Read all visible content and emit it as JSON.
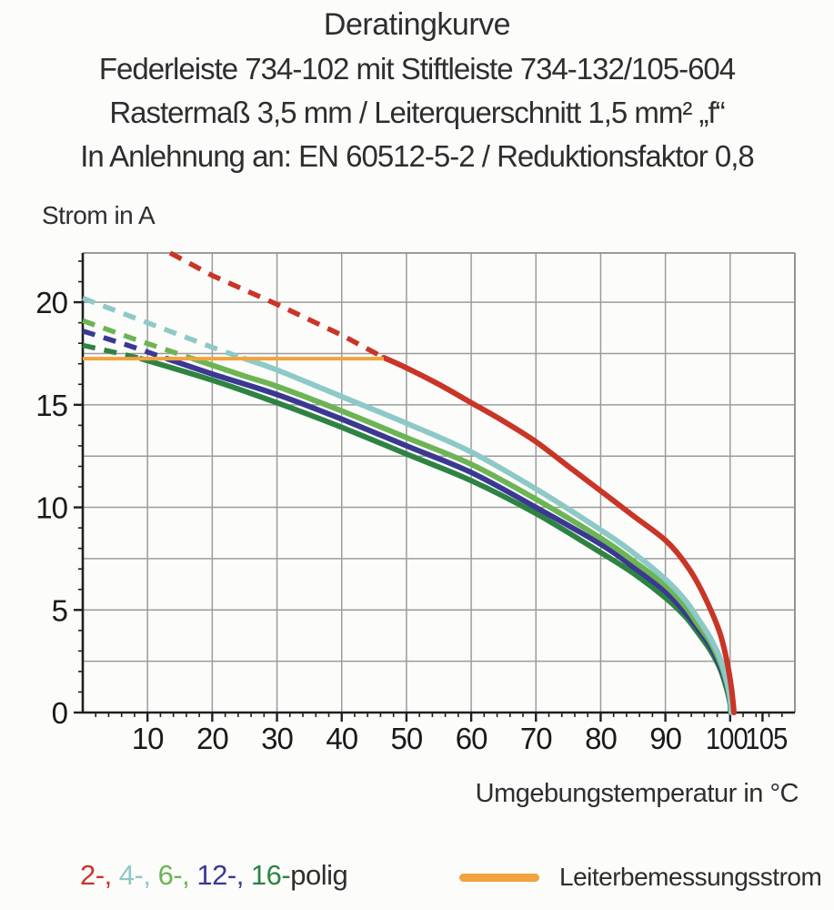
{
  "page": {
    "background": "#fcfcfb",
    "text_color": "#2e2e2e"
  },
  "header": {
    "title": "Deratingkurve",
    "subtitle1": "Federleiste 734-102 mit Stiftleiste 734-132/105-604",
    "subtitle2": "Rastermaß 3,5 mm / Leiterquerschnitt 1,5 mm² „f“",
    "subtitle3": "In Anlehnung an: EN 60512-5-2 / Reduktionsfaktor 0,8"
  },
  "chart_data": {
    "type": "line",
    "title": "Deratingkurve",
    "xlabel": "Umgebungstemperatur in °C",
    "ylabel": "Strom in A",
    "xlim": [
      0,
      110
    ],
    "ylim": [
      0,
      22.4
    ],
    "x_major_ticks": [
      10,
      20,
      30,
      40,
      50,
      60,
      70,
      80,
      90,
      100,
      105
    ],
    "x_minor_step": 2,
    "y_major_ticks": [
      0,
      5,
      10,
      15,
      20
    ],
    "y_minor_step": 1,
    "grid": {
      "x_step": 10,
      "y_step": 2.5,
      "color": "#9c9c9c",
      "frame_color": "#8e8e8e",
      "axis_color": "#1f1f1f",
      "tick_label_color": "#1a1a1a"
    },
    "series": [
      {
        "name": "2-polig",
        "color": "#c93526",
        "dashed": [
          [
            13.5,
            22.4
          ],
          [
            20,
            21.3
          ],
          [
            30,
            19.9
          ],
          [
            40,
            18.4
          ],
          [
            46.5,
            17.3
          ]
        ],
        "solid": [
          [
            46.5,
            17.3
          ],
          [
            50,
            16.8
          ],
          [
            55,
            16.0
          ],
          [
            60,
            15.1
          ],
          [
            65,
            14.2
          ],
          [
            70,
            13.2
          ],
          [
            75,
            12.0
          ],
          [
            80,
            10.8
          ],
          [
            85,
            9.6
          ],
          [
            90,
            8.4
          ],
          [
            93,
            7.3
          ],
          [
            95,
            6.3
          ],
          [
            97,
            5.0
          ],
          [
            98.5,
            3.8
          ],
          [
            99.5,
            2.5
          ],
          [
            100.2,
            1.2
          ],
          [
            100.6,
            0
          ]
        ]
      },
      {
        "name": "4-polig",
        "color": "#8dc9c7",
        "dashed": [
          [
            0,
            20.2
          ],
          [
            10,
            19.0
          ],
          [
            20,
            17.8
          ],
          [
            25,
            17.25
          ]
        ],
        "solid": [
          [
            25,
            17.25
          ],
          [
            30,
            16.7
          ],
          [
            40,
            15.4
          ],
          [
            50,
            14.1
          ],
          [
            60,
            12.7
          ],
          [
            70,
            10.9
          ],
          [
            80,
            8.9
          ],
          [
            85,
            7.8
          ],
          [
            90,
            6.5
          ],
          [
            93,
            5.5
          ],
          [
            95,
            4.6
          ],
          [
            97,
            3.6
          ],
          [
            98.5,
            2.6
          ],
          [
            99.5,
            1.5
          ],
          [
            100,
            0.7
          ],
          [
            100.2,
            0
          ]
        ]
      },
      {
        "name": "6-polig",
        "color": "#6cb454",
        "dashed": [
          [
            0,
            19.1
          ],
          [
            8,
            18.2
          ],
          [
            17,
            17.25
          ]
        ],
        "solid": [
          [
            17,
            17.25
          ],
          [
            25,
            16.4
          ],
          [
            30,
            15.9
          ],
          [
            40,
            14.7
          ],
          [
            50,
            13.4
          ],
          [
            60,
            12.1
          ],
          [
            70,
            10.4
          ],
          [
            80,
            8.5
          ],
          [
            85,
            7.4
          ],
          [
            90,
            6.2
          ],
          [
            93,
            5.2
          ],
          [
            95,
            4.3
          ],
          [
            97,
            3.4
          ],
          [
            98.5,
            2.4
          ],
          [
            99.5,
            1.4
          ],
          [
            100,
            0.6
          ],
          [
            100.15,
            0
          ]
        ]
      },
      {
        "name": "12-polig",
        "color": "#3b3892",
        "dashed": [
          [
            0,
            18.6
          ],
          [
            7,
            17.9
          ],
          [
            13,
            17.25
          ]
        ],
        "solid": [
          [
            13,
            17.25
          ],
          [
            20,
            16.5
          ],
          [
            30,
            15.5
          ],
          [
            40,
            14.3
          ],
          [
            50,
            13.0
          ],
          [
            60,
            11.7
          ],
          [
            70,
            10.0
          ],
          [
            80,
            8.2
          ],
          [
            85,
            7.1
          ],
          [
            90,
            5.9
          ],
          [
            93,
            4.9
          ],
          [
            95,
            4.1
          ],
          [
            97,
            3.2
          ],
          [
            98.5,
            2.2
          ],
          [
            99.5,
            1.3
          ],
          [
            100,
            0.5
          ],
          [
            100.1,
            0
          ]
        ]
      },
      {
        "name": "16-polig",
        "color": "#2e8343",
        "dashed": [
          [
            0,
            17.9
          ],
          [
            5,
            17.55
          ],
          [
            9,
            17.25
          ]
        ],
        "solid": [
          [
            9,
            17.25
          ],
          [
            20,
            16.2
          ],
          [
            30,
            15.1
          ],
          [
            40,
            13.9
          ],
          [
            50,
            12.6
          ],
          [
            60,
            11.3
          ],
          [
            70,
            9.7
          ],
          [
            80,
            7.8
          ],
          [
            85,
            6.8
          ],
          [
            90,
            5.6
          ],
          [
            93,
            4.7
          ],
          [
            95,
            3.9
          ],
          [
            97,
            3.0
          ],
          [
            98.5,
            2.1
          ],
          [
            99.5,
            1.1
          ],
          [
            100,
            0.4
          ],
          [
            100.05,
            0
          ]
        ]
      }
    ],
    "rated_current_line": {
      "name": "Leiterbemessungsstrom",
      "color": "#f1a33d",
      "value": 17.25,
      "x_start": 0,
      "x_end": 46.5
    }
  },
  "legend": {
    "pole_segments": [
      {
        "text": "2-, ",
        "color": "#c93526"
      },
      {
        "text": "4-, ",
        "color": "#8dc9c7"
      },
      {
        "text": "6-, ",
        "color": "#6cb454"
      },
      {
        "text": "12-, ",
        "color": "#3b3892"
      },
      {
        "text": "16-",
        "color": "#2e8343"
      },
      {
        "text": "polig",
        "color": "#2e2e2e"
      }
    ],
    "rated_label": "Leiterbemessungsstrom",
    "rated_color": "#f1a33d"
  }
}
